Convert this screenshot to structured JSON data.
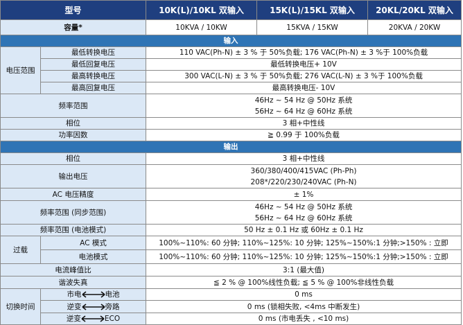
{
  "header": {
    "cells": [
      "型号",
      "10K(L)/10KL 双输入",
      "15K(L)/15KL 双输入",
      "20KL/20KL 双输入"
    ]
  },
  "capacity": {
    "label": "容量*",
    "values": [
      "10KVA / 10KW",
      "15KVA / 15KW",
      "20KVA / 20KW"
    ]
  },
  "input": {
    "title": "输入",
    "voltage_range": {
      "label": "电压范围",
      "rows": [
        {
          "label": "最低转换电压",
          "value": "110 VAC(Ph-N) ± 3 % 于 50%负载; 176 VAC(Ph-N) ± 3 %于 100%负载"
        },
        {
          "label": "最低回复电压",
          "value": "最低转换电压+ 10V"
        },
        {
          "label": "最高转换电压",
          "value": "300 VAC(L-N) ± 3 % 于 50%负载; 276 VAC(L-N) ± 3 %于 100%负载"
        },
        {
          "label": "最高回复电压",
          "value": "最高转换电压- 10V"
        }
      ]
    },
    "frequency_range": {
      "label": "频率范围",
      "lines": [
        "46Hz ~ 54 Hz @ 50Hz 系统",
        "56Hz ~ 64 Hz @ 60Hz 系统"
      ]
    },
    "phase": {
      "label": "相位",
      "value": "3 相+中性线"
    },
    "power_factor": {
      "label": "功率因数",
      "value": "≧ 0.99 于 100%负载"
    }
  },
  "output": {
    "title": "输出",
    "phase": {
      "label": "相位",
      "value": "3 相+中性线"
    },
    "voltage": {
      "label": "输出电压",
      "lines": [
        "360/380/400/415VAC (Ph-Ph)",
        "208*/220/230/240VAC (Ph-N)"
      ]
    },
    "accuracy": {
      "label": "AC 电压精度",
      "value": "± 1%"
    },
    "frequency_sync": {
      "label": "频率范围 (同步范围)",
      "lines": [
        "46Hz ~ 54 Hz @ 50Hz 系统",
        "56Hz ~ 64 Hz @ 60Hz 系统"
      ]
    },
    "frequency_battery": {
      "label": "频率范围 (电池模式)",
      "value": "50 Hz ± 0.1 Hz 或 60Hz ± 0.1 Hz"
    },
    "overload": {
      "label": "过载",
      "rows": [
        {
          "label": "AC 模式",
          "value": "100%~110%: 60 分钟; 110%~125%: 10 分钟; 125%~150%:1 分钟;>150% : 立即"
        },
        {
          "label": "电池模式",
          "value": "100%~110%: 60 分钟; 110%~125%: 10 分钟; 125%~150%:1 分钟;>150% : 立即"
        }
      ]
    },
    "crest_factor": {
      "label": "电流峰值比",
      "value": "3:1 (最大值)"
    },
    "thd": {
      "label": "谐波失真",
      "value": "≦ 2 % @ 100%线性负载; ≦ 5 % @ 100%非线性负载"
    },
    "transfer_time": {
      "label": "切换时间",
      "rows": [
        {
          "from": "市电",
          "to": "电池",
          "value": "0 ms"
        },
        {
          "from": "逆变",
          "to": "旁路",
          "value": "0 ms (锁相失败, <4ms 中断发生)"
        },
        {
          "from": "逆变",
          "to": "ECO",
          "value": "0 ms (市电丢失 , <10 ms)"
        }
      ]
    }
  }
}
